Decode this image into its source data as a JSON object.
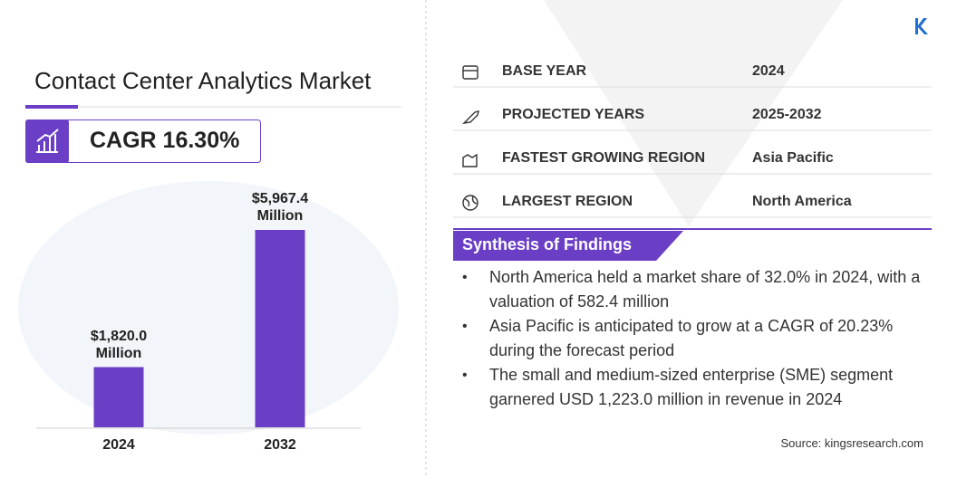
{
  "header": {
    "title": "Contact Center Analytics Market",
    "cagr": "CAGR 16.30%"
  },
  "chart_data": {
    "type": "bar",
    "categories": [
      "2024",
      "2032"
    ],
    "values": [
      1820.0,
      5967.4
    ],
    "value_labels": [
      "$1,820.0 Million",
      "$5,967.4 Million"
    ],
    "color": "#6a3fc6"
  },
  "info": {
    "rows": [
      {
        "label": "BASE YEAR",
        "value": "2024"
      },
      {
        "label": "PROJECTED YEARS",
        "value": "2025-2032"
      },
      {
        "label": "FASTEST GROWING REGION",
        "value": "Asia Pacific"
      },
      {
        "label": "LARGEST REGION",
        "value": "North America"
      }
    ]
  },
  "findings": {
    "title": "Synthesis of Findings",
    "items": [
      "North America held a market share of 32.0% in 2024, with a valuation of 582.4 million",
      "Asia Pacific is anticipated to grow at a CAGR of 20.23% during the forecast period",
      "The small and medium-sized enterprise (SME) segment garnered USD 1,223.0 million in revenue in 2024"
    ]
  },
  "source": "Source: kingsresearch.com"
}
